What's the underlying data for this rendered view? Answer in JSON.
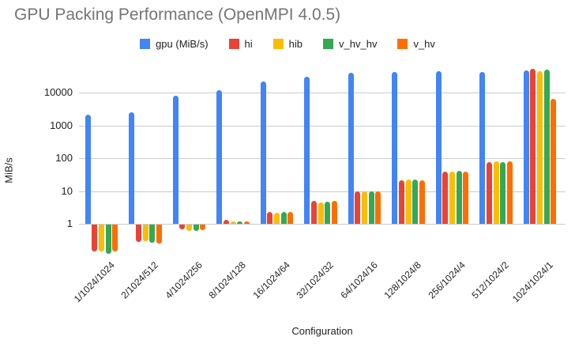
{
  "title": "GPU Packing Performance (OpenMPI 4.0.5)",
  "chart_data": {
    "type": "bar",
    "title": "GPU Packing Performance (OpenMPI 4.0.5)",
    "xlabel": "Configuration",
    "ylabel": "MiB/s",
    "y_scale": "log",
    "y_ticks": [
      1,
      10,
      100,
      1000,
      10000
    ],
    "ylim": [
      0.1,
      60000
    ],
    "grid": true,
    "legend_position": "top",
    "categories": [
      "1/1024/1024",
      "2/1024/512",
      "4/1024/256",
      "8/1024/128",
      "16/1024/64",
      "32/1024/32",
      "64/1024/16",
      "128/1024/8",
      "256/1024/4",
      "512/1024/2",
      "1024/1024/1"
    ],
    "series": [
      {
        "name": "gpu (MiB/s)",
        "color": "#4285F4",
        "values": [
          2150,
          2450,
          7800,
          12000,
          21500,
          31000,
          41000,
          42000,
          44000,
          42000,
          47000
        ]
      },
      {
        "name": "hi",
        "color": "#EA4335",
        "values": [
          0.15,
          0.3,
          0.7,
          1.35,
          2.3,
          4.9,
          9.5,
          21,
          38,
          76,
          52000
        ]
      },
      {
        "name": "hib",
        "color": "#FBBC04",
        "values": [
          0.15,
          0.31,
          0.65,
          1.2,
          2.2,
          4.5,
          10,
          22,
          40,
          82,
          45000
        ]
      },
      {
        "name": "v_hv_hv",
        "color": "#34A853",
        "values": [
          0.13,
          0.28,
          0.63,
          1.2,
          2.3,
          4.7,
          10,
          22,
          41,
          76,
          50000
        ]
      },
      {
        "name": "v_hv",
        "color": "#FF6D00",
        "values": [
          0.15,
          0.27,
          0.68,
          1.2,
          2.25,
          4.9,
          9.7,
          21,
          40,
          82,
          6400
        ]
      }
    ]
  },
  "colors": {
    "background": "#ffffff",
    "title_text": "#757575",
    "axis_text": "#222222",
    "gridline": "#cccccc"
  }
}
